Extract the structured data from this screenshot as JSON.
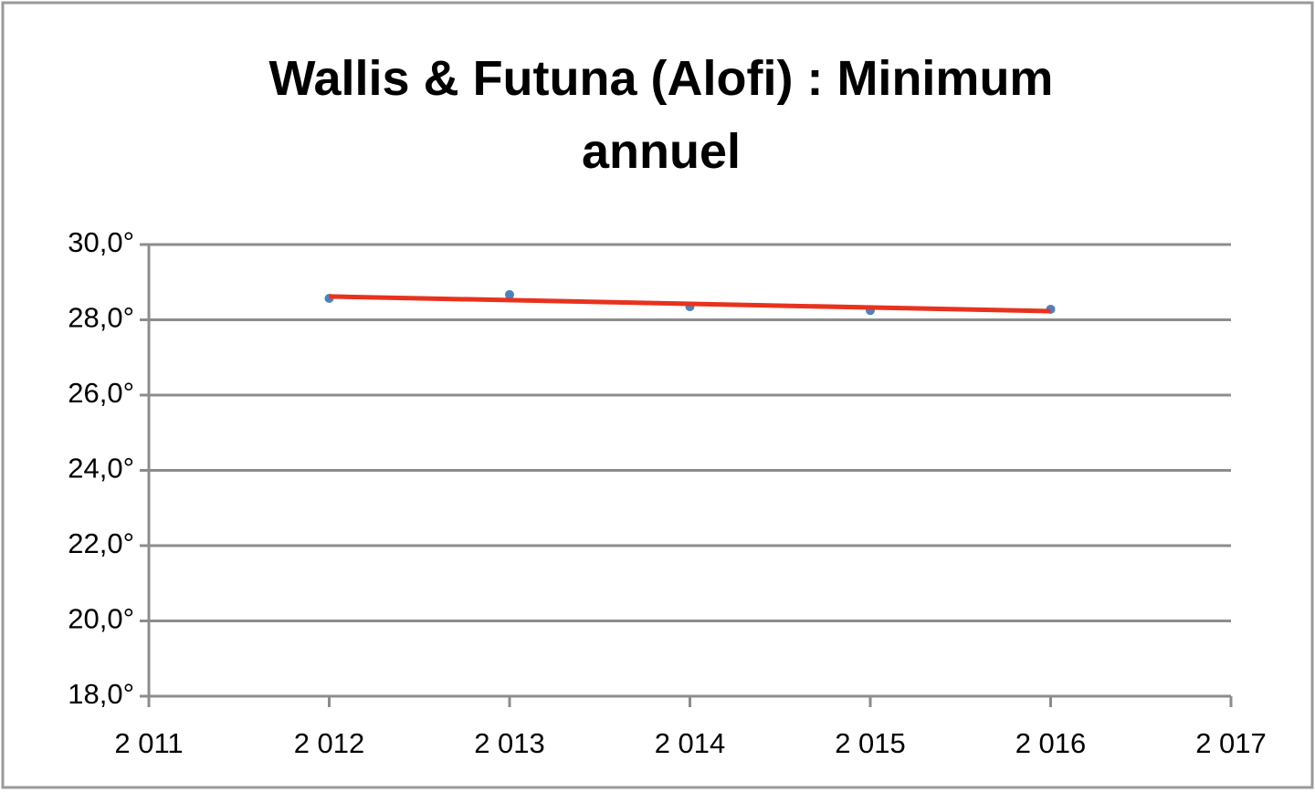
{
  "chart_data": {
    "type": "scatter",
    "title": "Wallis & Futuna (Alofi) : Minimum annuel",
    "x": [
      2012,
      2013,
      2014,
      2015,
      2016
    ],
    "series": [
      {
        "color": "#4f81bd",
        "values": [
          28.57,
          28.67,
          28.35,
          28.25,
          28.28
        ]
      }
    ],
    "trendline": {
      "color": "#e8321e",
      "x": [
        2012,
        2016
      ],
      "values": [
        28.62,
        28.23
      ]
    },
    "xlim": [
      2011,
      2017
    ],
    "xticks": [
      {
        "value": 2011,
        "label": "2 011"
      },
      {
        "value": 2012,
        "label": "2 012"
      },
      {
        "value": 2013,
        "label": "2 013"
      },
      {
        "value": 2014,
        "label": "2 014"
      },
      {
        "value": 2015,
        "label": "2 015"
      },
      {
        "value": 2016,
        "label": "2 016"
      },
      {
        "value": 2017,
        "label": "2 017"
      }
    ],
    "ylim": [
      18,
      30
    ],
    "yticks": [
      {
        "value": 18,
        "label": "18,0°"
      },
      {
        "value": 20,
        "label": "20,0°"
      },
      {
        "value": 22,
        "label": "22,0°"
      },
      {
        "value": 24,
        "label": "24,0°"
      },
      {
        "value": 26,
        "label": "26,0°"
      },
      {
        "value": 28,
        "label": "28,0°"
      },
      {
        "value": 30,
        "label": "30,0°"
      }
    ],
    "grid": true
  }
}
